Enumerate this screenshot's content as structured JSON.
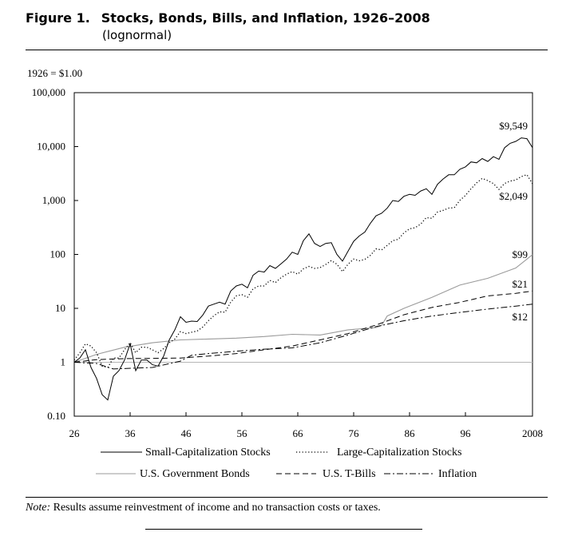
{
  "header": {
    "figure_label": "Figure 1.",
    "title": "Stocks, Bonds, Bills, and Inflation, 1926–2008",
    "subtitle": "(lognormal)"
  },
  "base_label": "1926 = $1.00",
  "note": {
    "label": "Note:",
    "text": "Results assume reinvestment of income and no transaction costs or taxes."
  },
  "chart_data": {
    "type": "line",
    "scale": "log",
    "ylim": [
      0.1,
      100000
    ],
    "xlim": [
      1926,
      2008
    ],
    "y_ticks": [
      {
        "value": 100000,
        "label": "100,000"
      },
      {
        "value": 10000,
        "label": "10,000"
      },
      {
        "value": 1000,
        "label": "1,000"
      },
      {
        "value": 100,
        "label": "100"
      },
      {
        "value": 10,
        "label": "10"
      },
      {
        "value": 1,
        "label": "1"
      },
      {
        "value": 0.1,
        "label": "0.10"
      }
    ],
    "x_ticks": [
      {
        "value": 1926,
        "label": "26"
      },
      {
        "value": 1936,
        "label": "36"
      },
      {
        "value": 1946,
        "label": "46"
      },
      {
        "value": 1956,
        "label": "56"
      },
      {
        "value": 1966,
        "label": "66"
      },
      {
        "value": 1976,
        "label": "76"
      },
      {
        "value": 1986,
        "label": "86"
      },
      {
        "value": 1996,
        "label": "96"
      },
      {
        "value": 2008,
        "label": "2008"
      }
    ],
    "reference_line": 1,
    "series": [
      {
        "name": "Small-Capitalization Stocks",
        "style": "solid",
        "color": "#000000",
        "end_label": "$9,549",
        "points": [
          [
            1926,
            1
          ],
          [
            1927,
            1.2
          ],
          [
            1928,
            1.7
          ],
          [
            1929,
            0.8
          ],
          [
            1930,
            0.5
          ],
          [
            1931,
            0.25
          ],
          [
            1932,
            0.2
          ],
          [
            1933,
            0.55
          ],
          [
            1934,
            0.7
          ],
          [
            1935,
            1.1
          ],
          [
            1936,
            2.2
          ],
          [
            1937,
            0.7
          ],
          [
            1938,
            1.1
          ],
          [
            1939,
            1.1
          ],
          [
            1940,
            0.9
          ],
          [
            1941,
            0.85
          ],
          [
            1942,
            1.3
          ],
          [
            1943,
            2.6
          ],
          [
            1944,
            4.0
          ],
          [
            1945,
            7.0
          ],
          [
            1946,
            5.5
          ],
          [
            1947,
            5.8
          ],
          [
            1948,
            5.7
          ],
          [
            1949,
            7.5
          ],
          [
            1950,
            11
          ],
          [
            1951,
            12
          ],
          [
            1952,
            13
          ],
          [
            1953,
            12
          ],
          [
            1954,
            21
          ],
          [
            1955,
            26
          ],
          [
            1956,
            28
          ],
          [
            1957,
            24
          ],
          [
            1958,
            41
          ],
          [
            1959,
            49
          ],
          [
            1960,
            47
          ],
          [
            1961,
            62
          ],
          [
            1962,
            55
          ],
          [
            1963,
            67
          ],
          [
            1964,
            82
          ],
          [
            1965,
            110
          ],
          [
            1966,
            100
          ],
          [
            1967,
            180
          ],
          [
            1968,
            240
          ],
          [
            1969,
            160
          ],
          [
            1970,
            140
          ],
          [
            1971,
            160
          ],
          [
            1972,
            165
          ],
          [
            1973,
            100
          ],
          [
            1974,
            75
          ],
          [
            1975,
            115
          ],
          [
            1976,
            175
          ],
          [
            1977,
            220
          ],
          [
            1978,
            260
          ],
          [
            1979,
            380
          ],
          [
            1980,
            520
          ],
          [
            1981,
            580
          ],
          [
            1982,
            720
          ],
          [
            1983,
            1000
          ],
          [
            1984,
            960
          ],
          [
            1985,
            1200
          ],
          [
            1986,
            1300
          ],
          [
            1987,
            1250
          ],
          [
            1988,
            1500
          ],
          [
            1989,
            1650
          ],
          [
            1990,
            1300
          ],
          [
            1991,
            2000
          ],
          [
            1992,
            2500
          ],
          [
            1993,
            3000
          ],
          [
            1994,
            3000
          ],
          [
            1995,
            3800
          ],
          [
            1996,
            4200
          ],
          [
            1997,
            5200
          ],
          [
            1998,
            5000
          ],
          [
            1999,
            6000
          ],
          [
            2000,
            5300
          ],
          [
            2001,
            6500
          ],
          [
            2002,
            5800
          ],
          [
            2003,
            9500
          ],
          [
            2004,
            11500
          ],
          [
            2005,
            12500
          ],
          [
            2006,
            14500
          ],
          [
            2007,
            14000
          ],
          [
            2008,
            9549
          ]
        ]
      },
      {
        "name": "Large-Capitalization Stocks",
        "style": "dotted",
        "color": "#000000",
        "end_label": "$2,049",
        "points": [
          [
            1926,
            1.1
          ],
          [
            1927,
            1.5
          ],
          [
            1928,
            2.2
          ],
          [
            1929,
            2.0
          ],
          [
            1930,
            1.5
          ],
          [
            1931,
            0.85
          ],
          [
            1932,
            0.8
          ],
          [
            1933,
            1.2
          ],
          [
            1934,
            1.2
          ],
          [
            1935,
            1.7
          ],
          [
            1936,
            2.3
          ],
          [
            1937,
            1.5
          ],
          [
            1938,
            1.9
          ],
          [
            1939,
            1.9
          ],
          [
            1940,
            1.7
          ],
          [
            1941,
            1.5
          ],
          [
            1942,
            1.8
          ],
          [
            1943,
            2.3
          ],
          [
            1944,
            2.7
          ],
          [
            1945,
            3.7
          ],
          [
            1946,
            3.4
          ],
          [
            1947,
            3.6
          ],
          [
            1948,
            3.8
          ],
          [
            1949,
            4.5
          ],
          [
            1950,
            5.9
          ],
          [
            1951,
            7.3
          ],
          [
            1952,
            8.6
          ],
          [
            1953,
            8.5
          ],
          [
            1954,
            13
          ],
          [
            1955,
            17
          ],
          [
            1956,
            18
          ],
          [
            1957,
            16
          ],
          [
            1958,
            23
          ],
          [
            1959,
            26
          ],
          [
            1960,
            26
          ],
          [
            1961,
            33
          ],
          [
            1962,
            30
          ],
          [
            1963,
            37
          ],
          [
            1964,
            43
          ],
          [
            1965,
            48
          ],
          [
            1966,
            43
          ],
          [
            1967,
            54
          ],
          [
            1968,
            60
          ],
          [
            1969,
            55
          ],
          [
            1970,
            57
          ],
          [
            1971,
            65
          ],
          [
            1972,
            77
          ],
          [
            1973,
            66
          ],
          [
            1974,
            48
          ],
          [
            1975,
            66
          ],
          [
            1976,
            82
          ],
          [
            1977,
            76
          ],
          [
            1978,
            81
          ],
          [
            1979,
            96
          ],
          [
            1980,
            127
          ],
          [
            1981,
            121
          ],
          [
            1982,
            147
          ],
          [
            1983,
            180
          ],
          [
            1984,
            191
          ],
          [
            1985,
            252
          ],
          [
            1986,
            298
          ],
          [
            1987,
            314
          ],
          [
            1988,
            366
          ],
          [
            1989,
            482
          ],
          [
            1990,
            467
          ],
          [
            1991,
            610
          ],
          [
            1992,
            656
          ],
          [
            1993,
            722
          ],
          [
            1994,
            732
          ],
          [
            1995,
            1007
          ],
          [
            1996,
            1238
          ],
          [
            1997,
            1652
          ],
          [
            1998,
            2124
          ],
          [
            1999,
            2572
          ],
          [
            2000,
            2338
          ],
          [
            2001,
            2061
          ],
          [
            2002,
            1605
          ],
          [
            2003,
            2066
          ],
          [
            2004,
            2291
          ],
          [
            2005,
            2403
          ],
          [
            2006,
            2783
          ],
          [
            2007,
            3010
          ],
          [
            2008,
            2049
          ]
        ]
      },
      {
        "name": "U.S. Government Bonds",
        "style": "solid-gray",
        "color": "#9a9a9a",
        "end_label": "$99",
        "points": [
          [
            1926,
            1
          ],
          [
            1930,
            1.4
          ],
          [
            1935,
            1.9
          ],
          [
            1940,
            2.3
          ],
          [
            1945,
            2.6
          ],
          [
            1950,
            2.7
          ],
          [
            1955,
            2.8
          ],
          [
            1960,
            3.0
          ],
          [
            1965,
            3.3
          ],
          [
            1970,
            3.2
          ],
          [
            1975,
            4.0
          ],
          [
            1980,
            4.4
          ],
          [
            1981,
            4.8
          ],
          [
            1982,
            7.2
          ],
          [
            1985,
            10
          ],
          [
            1990,
            16
          ],
          [
            1995,
            27
          ],
          [
            2000,
            36
          ],
          [
            2005,
            56
          ],
          [
            2008,
            99
          ]
        ]
      },
      {
        "name": "U.S. T-Bills",
        "style": "dashed",
        "color": "#000000",
        "end_label": "$21",
        "points": [
          [
            1926,
            1
          ],
          [
            1930,
            1.12
          ],
          [
            1935,
            1.17
          ],
          [
            1940,
            1.18
          ],
          [
            1945,
            1.2
          ],
          [
            1950,
            1.3
          ],
          [
            1955,
            1.45
          ],
          [
            1960,
            1.7
          ],
          [
            1965,
            2.0
          ],
          [
            1970,
            2.6
          ],
          [
            1975,
            3.4
          ],
          [
            1980,
            4.9
          ],
          [
            1985,
            7.6
          ],
          [
            1990,
            10.4
          ],
          [
            1995,
            12.9
          ],
          [
            2000,
            17
          ],
          [
            2005,
            19
          ],
          [
            2008,
            21
          ]
        ]
      },
      {
        "name": "Inflation",
        "style": "dash-dot",
        "color": "#000000",
        "end_label": "$12",
        "points": [
          [
            1926,
            1
          ],
          [
            1930,
            0.95
          ],
          [
            1933,
            0.75
          ],
          [
            1940,
            0.8
          ],
          [
            1945,
            1.05
          ],
          [
            1947,
            1.35
          ],
          [
            1950,
            1.45
          ],
          [
            1955,
            1.6
          ],
          [
            1960,
            1.75
          ],
          [
            1965,
            1.85
          ],
          [
            1970,
            2.3
          ],
          [
            1975,
            3.2
          ],
          [
            1980,
            4.6
          ],
          [
            1985,
            5.9
          ],
          [
            1990,
            7.2
          ],
          [
            1995,
            8.4
          ],
          [
            2000,
            9.7
          ],
          [
            2005,
            11
          ],
          [
            2008,
            12
          ]
        ]
      }
    ]
  }
}
